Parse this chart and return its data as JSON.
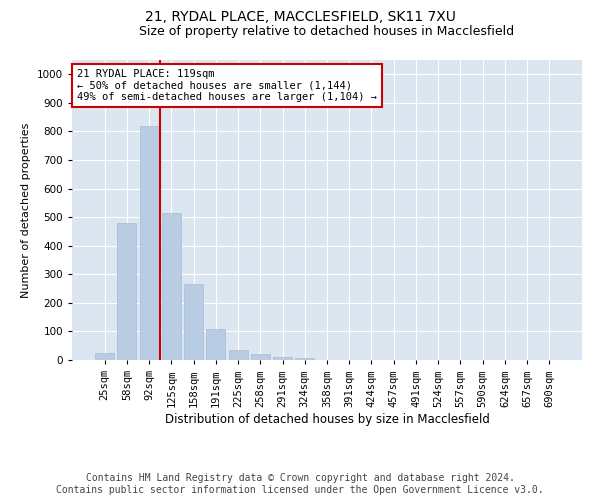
{
  "title1": "21, RYDAL PLACE, MACCLESFIELD, SK11 7XU",
  "title2": "Size of property relative to detached houses in Macclesfield",
  "xlabel": "Distribution of detached houses by size in Macclesfield",
  "ylabel": "Number of detached properties",
  "categories": [
    "25sqm",
    "58sqm",
    "92sqm",
    "125sqm",
    "158sqm",
    "191sqm",
    "225sqm",
    "258sqm",
    "291sqm",
    "324sqm",
    "358sqm",
    "391sqm",
    "424sqm",
    "457sqm",
    "491sqm",
    "524sqm",
    "557sqm",
    "590sqm",
    "624sqm",
    "657sqm",
    "690sqm"
  ],
  "values": [
    25,
    478,
    820,
    515,
    265,
    110,
    35,
    20,
    10,
    8,
    0,
    0,
    0,
    0,
    0,
    0,
    0,
    0,
    0,
    0,
    0
  ],
  "bar_color": "#b8cce4",
  "bar_edge_color": "#aabbd6",
  "grid_color": "#ffffff",
  "bg_color": "#dce6f1",
  "vline_x": 2.5,
  "vline_color": "#cc0000",
  "annotation_title": "21 RYDAL PLACE: 119sqm",
  "annotation_line1": "← 50% of detached houses are smaller (1,144)",
  "annotation_line2": "49% of semi-detached houses are larger (1,104) →",
  "annotation_box_color": "#ffffff",
  "annotation_box_edge": "#cc0000",
  "ylim": [
    0,
    1050
  ],
  "yticks": [
    0,
    100,
    200,
    300,
    400,
    500,
    600,
    700,
    800,
    900,
    1000
  ],
  "footer1": "Contains HM Land Registry data © Crown copyright and database right 2024.",
  "footer2": "Contains public sector information licensed under the Open Government Licence v3.0.",
  "title_fontsize": 10,
  "subtitle_fontsize": 9,
  "tick_fontsize": 7.5,
  "ylabel_fontsize": 8,
  "xlabel_fontsize": 8.5,
  "annot_fontsize": 7.5,
  "footer_fontsize": 7
}
